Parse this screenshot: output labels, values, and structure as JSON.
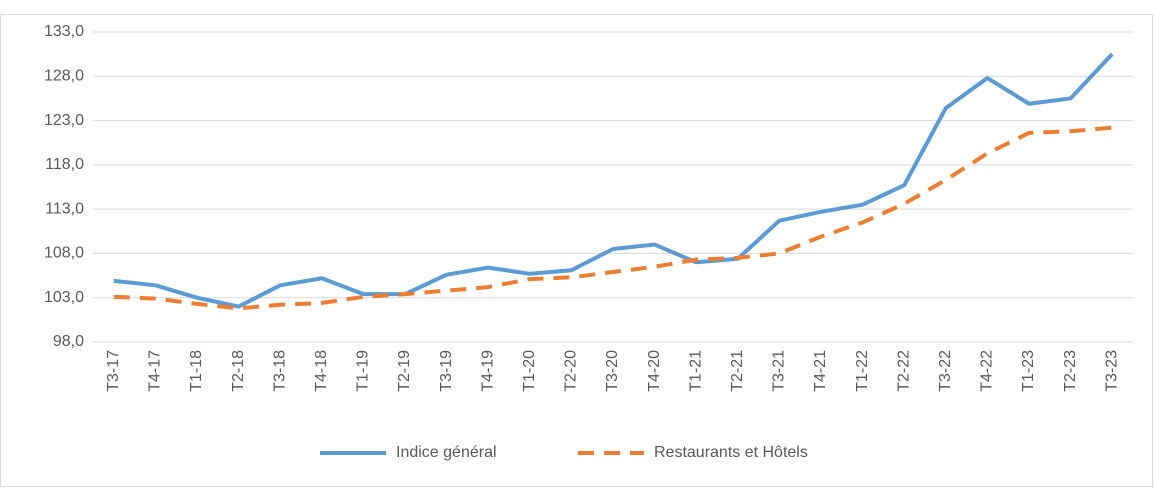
{
  "chart_data": {
    "type": "line",
    "categories": [
      "T3-17",
      "T4-17",
      "T1-18",
      "T2-18",
      "T3-18",
      "T4-18",
      "T1-19",
      "T2-19",
      "T3-19",
      "T4-19",
      "T1-20",
      "T2-20",
      "T3-20",
      "T4-20",
      "T1-21",
      "T2-21",
      "T3-21",
      "T4-21",
      "T1-22",
      "T2-22",
      "T3-22",
      "T4-22",
      "T1-23",
      "T2-23",
      "T3-23"
    ],
    "series": [
      {
        "name": "Indice général",
        "color": "#5b9bd5",
        "line_style": "solid",
        "values": [
          104.9,
          104.4,
          103.0,
          102.0,
          104.4,
          105.2,
          103.4,
          103.4,
          105.6,
          106.4,
          105.7,
          106.1,
          108.5,
          109.0,
          107.0,
          107.4,
          111.7,
          112.7,
          113.5,
          115.7,
          124.4,
          127.8,
          124.9,
          125.5,
          130.5
        ]
      },
      {
        "name": "Restaurants et Hôtels",
        "color": "#ed7d31",
        "line_style": "dashed",
        "values": [
          103.1,
          102.9,
          102.3,
          101.8,
          102.2,
          102.4,
          103.1,
          103.4,
          103.8,
          104.2,
          105.1,
          105.3,
          105.9,
          106.5,
          107.3,
          107.5,
          108.0,
          109.9,
          111.5,
          113.6,
          116.3,
          119.3,
          121.6,
          121.8,
          122.2
        ]
      }
    ],
    "ylim": [
      98,
      133
    ],
    "yticks": [
      {
        "value": 98,
        "label": "98,0"
      },
      {
        "value": 103,
        "label": "103,0"
      },
      {
        "value": 108,
        "label": "108,0"
      },
      {
        "value": 113,
        "label": "113,0"
      },
      {
        "value": 118,
        "label": "118,0"
      },
      {
        "value": 123,
        "label": "123,0"
      },
      {
        "value": 128,
        "label": "128,0"
      },
      {
        "value": 133,
        "label": "133,0"
      }
    ],
    "grid": true,
    "legend": "bottom"
  }
}
